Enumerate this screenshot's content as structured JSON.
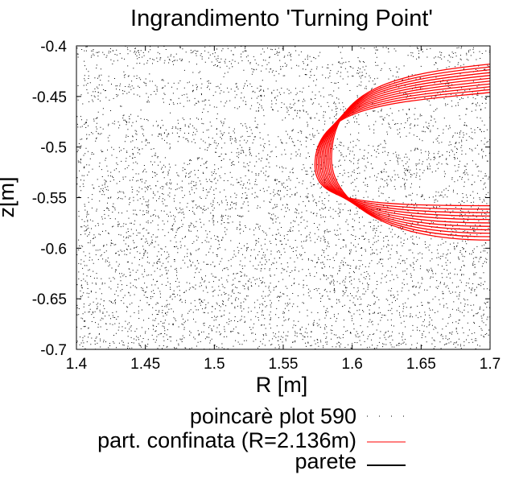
{
  "chart_data": {
    "type": "scatter",
    "title": "Ingrandimento 'Turning Point'",
    "xlabel": "R [m]",
    "ylabel": "z[m]",
    "xlim": [
      1.4,
      1.7
    ],
    "ylim": [
      -0.7,
      -0.4
    ],
    "x_ticks": [
      "1.4",
      "1.45",
      "1.5",
      "1.55",
      "1.6",
      "1.65",
      "1.7"
    ],
    "y_ticks": [
      "-0.4",
      "-0.45",
      "-0.5",
      "-0.55",
      "-0.6",
      "-0.65",
      "-0.7"
    ],
    "grid": false,
    "legend_position": "bottom-right",
    "series": [
      {
        "name": "poincarè plot 590",
        "kind": "points",
        "color": "#000000",
        "description_ref": "dense stochastic point cloud filling the plot region"
      },
      {
        "name": "part. confinata (R=2.136m)",
        "kind": "orbit",
        "color": "#ff0000",
        "turning_point": {
          "R": 1.573,
          "z": -0.515
        },
        "upper_branch_end": {
          "R": 1.7,
          "z": -0.42
        },
        "lower_branch_end": {
          "R": 1.7,
          "z": -0.59
        },
        "upper_branch_band": [
          -0.446,
          -0.418
        ],
        "lower_branch_band": [
          -0.592,
          -0.558
        ]
      },
      {
        "name": "parete",
        "kind": "line",
        "color": "#000000"
      }
    ]
  }
}
